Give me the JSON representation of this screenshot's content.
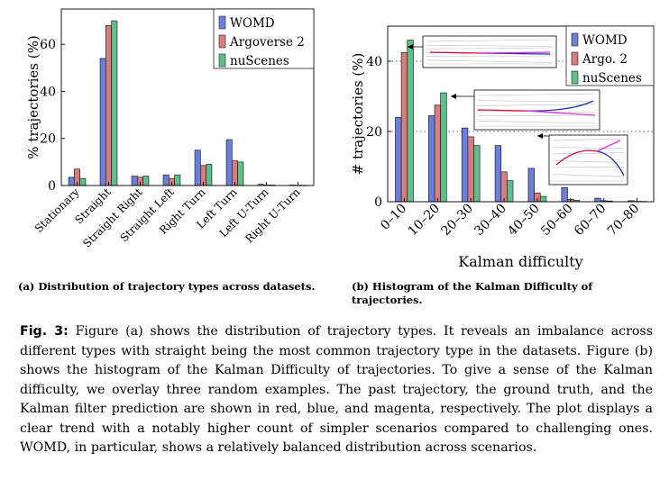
{
  "colors": {
    "WOMD": "#6a7fdb",
    "Argoverse 2": "#d87c7c",
    "nuScenes": "#5fbf8a",
    "past": "#d0103a",
    "gt": "#2233aa",
    "pred": "#dd33dd"
  },
  "chart_data": [
    {
      "type": "bar",
      "ylabel": "% trajectories (%)",
      "xlabel": "",
      "ylim": [
        0,
        75
      ],
      "yticks": [
        0,
        20,
        40,
        60
      ],
      "grid": false,
      "legend_position": "top-right",
      "categories": [
        "Stationary",
        "Straight",
        "Straight Right",
        "Straight Left",
        "Right Turn",
        "Left Turn",
        "Left U-Turn",
        "Right U-Turn"
      ],
      "series": [
        {
          "name": "WOMD",
          "values": [
            3.5,
            54,
            4,
            4.5,
            15,
            19.5,
            0.5,
            0.2
          ]
        },
        {
          "name": "Argoverse 2",
          "values": [
            7,
            68,
            3.5,
            3,
            8.5,
            10.5,
            0.2,
            0.1
          ]
        },
        {
          "name": "nuScenes",
          "values": [
            3,
            70,
            4,
            4.5,
            9,
            10,
            0.2,
            0.1
          ]
        }
      ]
    },
    {
      "type": "bar",
      "ylabel": "# trajectories (%)",
      "xlabel": "Kalman difficulty",
      "ylim": [
        0,
        50
      ],
      "yticks": [
        0,
        20,
        40
      ],
      "grid": true,
      "legend_position": "top-right",
      "categories": [
        "0–10",
        "10–20",
        "20–30",
        "30–40",
        "40–50",
        "50–60",
        "60–70",
        "70–80"
      ],
      "series": [
        {
          "name": "WOMD",
          "values": [
            24,
            24.5,
            21,
            16,
            9.5,
            4,
            1,
            0.3
          ]
        },
        {
          "name": "Argo. 2",
          "values": [
            42.5,
            27.5,
            18.5,
            8.5,
            2.5,
            0.7,
            0.3,
            0.1
          ]
        },
        {
          "name": "nuScenes",
          "values": [
            46,
            31,
            16,
            6,
            1.5,
            0.4,
            0.2,
            0.1
          ]
        }
      ]
    }
  ],
  "captions": {
    "a": "(a) Distribution of trajectory types across datasets.",
    "b": "(b) Histogram of the Kalman Difficulty of trajectories."
  },
  "figure": {
    "label": "Fig. 3:",
    "text": " Figure (a) shows the distribution of trajectory types. It reveals an imbalance across different types with straight being the most common trajectory type in the datasets. Figure (b) shows the histogram of the Kalman Difficulty of trajectories. To give a sense of the Kalman difficulty, we overlay three random examples. The past trajectory, the ground truth, and the Kalman filter prediction are shown in red, blue, and magenta, respectively. The plot displays a clear trend with a notably higher count of simpler scenarios compared to challenging ones. WOMD, in particular, shows a relatively balanced distribution across scenarios."
  }
}
